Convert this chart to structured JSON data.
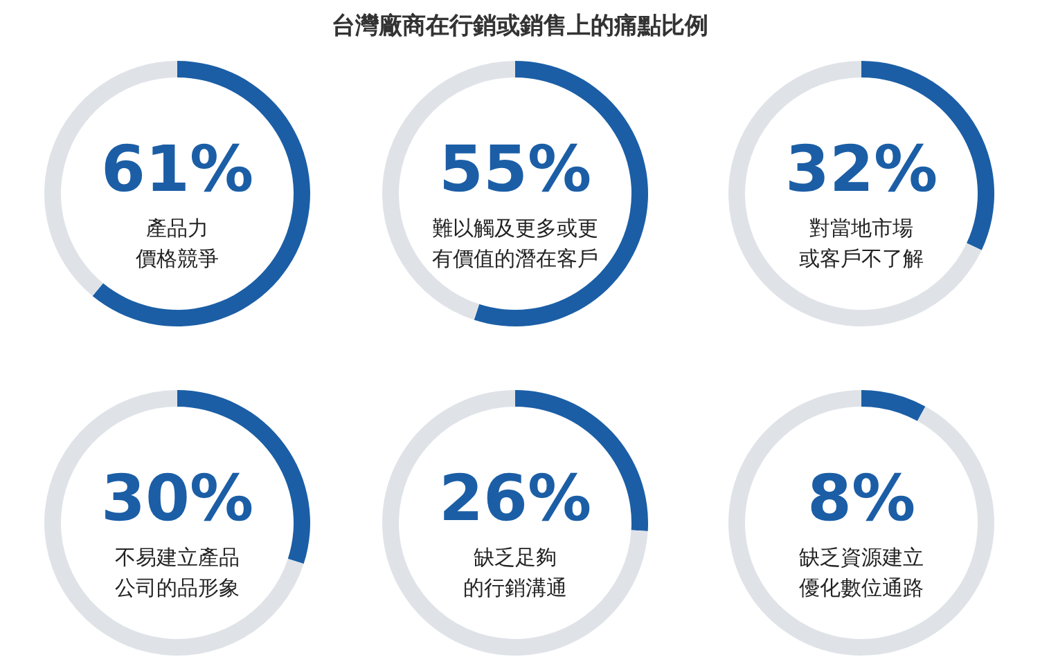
{
  "chart_data": [
    {
      "type": "other",
      "title": "台灣廠商在行銷或銷售上的痛點比例"
    },
    {
      "type": "donut",
      "categories": [
        "產品力價格競爭",
        null
      ],
      "values": [
        61,
        39
      ],
      "colors": [
        "#1b5ea6",
        "#dfe3e8"
      ],
      "value_labels": [
        "61%",
        null
      ]
    },
    {
      "type": "donut",
      "categories": [
        "難以觸及更多或更有價值的潛在客戶",
        null
      ],
      "values": [
        55,
        45
      ],
      "colors": [
        "#1b5ea6",
        "#dfe3e8"
      ],
      "value_labels": [
        "55%",
        null
      ]
    },
    {
      "type": "donut",
      "categories": [
        "對當地市場或客戶不了解",
        null
      ],
      "values": [
        32,
        68
      ],
      "colors": [
        "#1b5ea6",
        "#dfe3e8"
      ],
      "value_labels": [
        "32%",
        null
      ]
    },
    {
      "type": "donut",
      "categories": [
        "不易建立產品公司的品形象",
        null
      ],
      "values": [
        30,
        70
      ],
      "colors": [
        "#1b5ea6",
        "#dfe3e8"
      ],
      "value_labels": [
        "30%",
        null
      ]
    },
    {
      "type": "donut",
      "categories": [
        "缺乏足夠的行銷溝通",
        null
      ],
      "values": [
        26,
        74
      ],
      "colors": [
        "#1b5ea6",
        "#dfe3e8"
      ],
      "value_labels": [
        "26%",
        null
      ]
    },
    {
      "type": "donut",
      "categories": [
        "缺乏資源建立優化數位通路",
        null
      ],
      "values": [
        8,
        92
      ],
      "colors": [
        "#1b5ea6",
        "#dfe3e8"
      ],
      "value_labels": [
        "8%",
        null
      ]
    }
  ]
}
